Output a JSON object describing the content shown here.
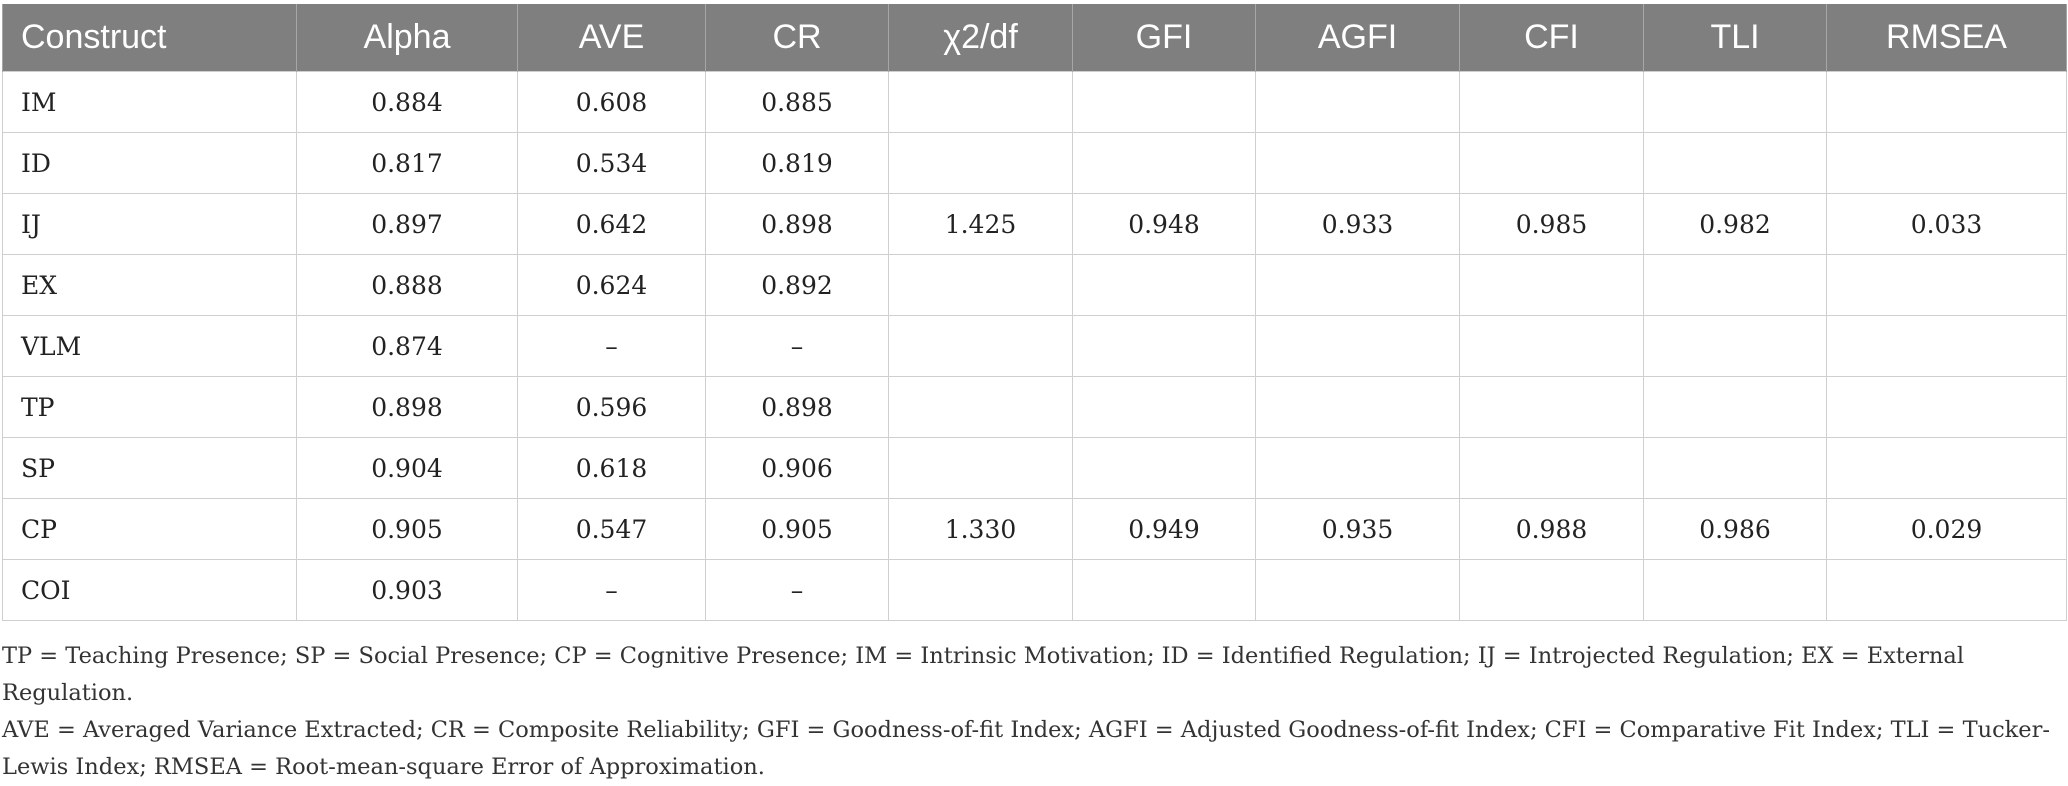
{
  "table": {
    "headers": [
      "Construct",
      "Alpha",
      "AVE",
      "CR",
      "χ2/df",
      "GFI",
      "AGFI",
      "CFI",
      "TLI",
      "RMSEA"
    ],
    "rows": [
      [
        "IM",
        "0.884",
        "0.608",
        "0.885",
        "",
        "",
        "",
        "",
        "",
        ""
      ],
      [
        "ID",
        "0.817",
        "0.534",
        "0.819",
        "",
        "",
        "",
        "",
        "",
        ""
      ],
      [
        "IJ",
        "0.897",
        "0.642",
        "0.898",
        "1.425",
        "0.948",
        "0.933",
        "0.985",
        "0.982",
        "0.033"
      ],
      [
        "EX",
        "0.888",
        "0.624",
        "0.892",
        "",
        "",
        "",
        "",
        "",
        ""
      ],
      [
        "VLM",
        "0.874",
        "–",
        "–",
        "",
        "",
        "",
        "",
        "",
        ""
      ],
      [
        "TP",
        "0.898",
        "0.596",
        "0.898",
        "",
        "",
        "",
        "",
        "",
        ""
      ],
      [
        "SP",
        "0.904",
        "0.618",
        "0.906",
        "",
        "",
        "",
        "",
        "",
        ""
      ],
      [
        "CP",
        "0.905",
        "0.547",
        "0.905",
        "1.330",
        "0.949",
        "0.935",
        "0.988",
        "0.986",
        "0.029"
      ],
      [
        "COI",
        "0.903",
        "–",
        "–",
        "",
        "",
        "",
        "",
        "",
        ""
      ]
    ]
  },
  "notes": {
    "line1": "TP = Teaching Presence; SP = Social Presence; CP = Cognitive Presence; IM = Intrinsic Motivation; ID = Identified Regulation; IJ = Introjected Regulation; EX = External Regulation.",
    "line2": "AVE = Averaged Variance Extracted; CR = Composite Reliability; GFI = Goodness-of-fit Index; AGFI = Adjusted Goodness-of-fit Index; CFI = Comparative Fit Index; TLI = Tucker-Lewis Index; RMSEA = Root-mean-square Error of Approximation."
  }
}
